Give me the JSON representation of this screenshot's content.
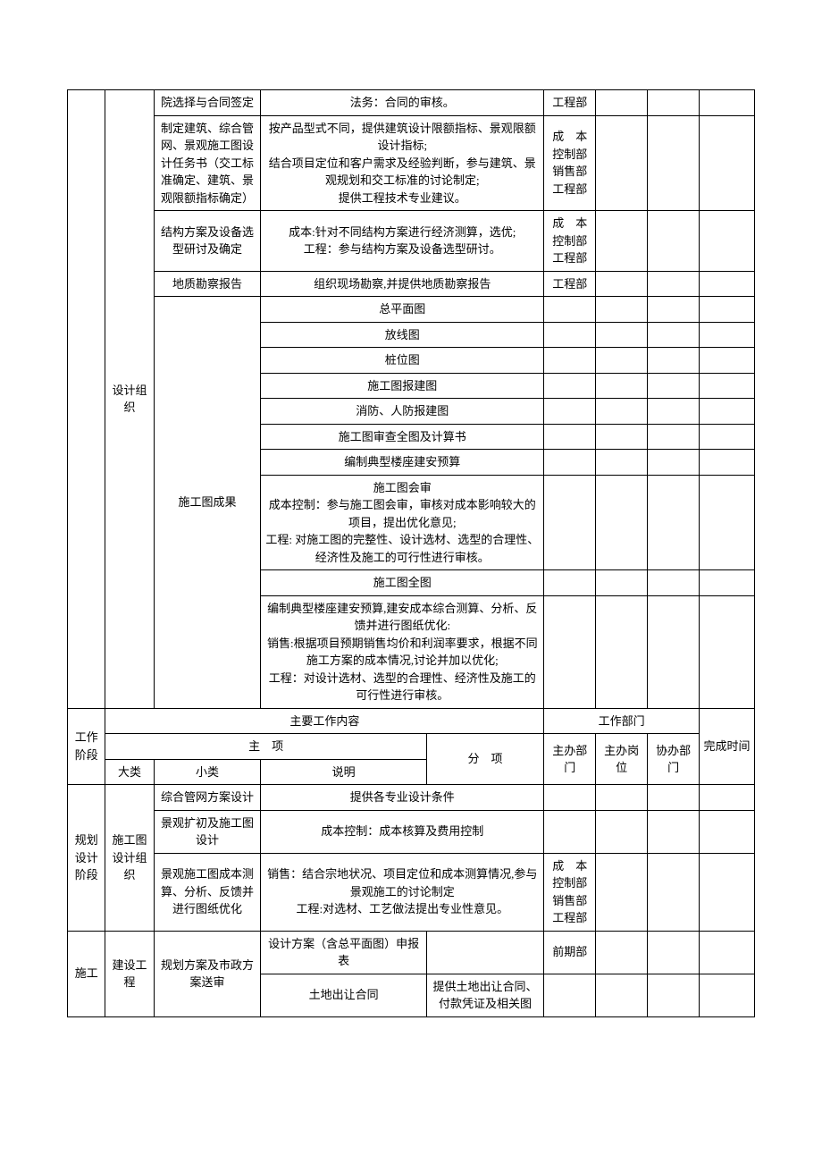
{
  "rows": [
    {
      "col1": "设计组织",
      "col2": "院选择与合同签定",
      "col34": "法务：合同的审核。",
      "col5": "工程部"
    },
    {
      "col2": "制定建筑、综合管网、景观施工图设计任务书（交工标准确定、建筑、景观限额指标确定）",
      "col34": "按产品型式不同，提供建筑设计限额指标、景观限额设计指标;\n结合项目定位和客户需求及经验判断，参与建筑、景观规划和交工标准的讨论制定;\n提供工程技术专业建议。",
      "col5": "成　本控制部销售部工程部"
    },
    {
      "col2": "结构方案及设备选型研讨及确定",
      "col34": "成本:针对不同结构方案进行经济测算，选优;\n工程：参与结构方案及设备选型研讨。",
      "col5": "成　本控制部工程部"
    },
    {
      "col2": "地质勘察报告",
      "col34": "组织现场勘察,并提供地质勘察报告",
      "col5": "工程部"
    },
    {
      "col2": "施工图成果",
      "group": [
        {
          "c34": "总平面图"
        },
        {
          "c34": "放线图"
        },
        {
          "c34": "桩位图"
        },
        {
          "c34": "施工图报建图"
        },
        {
          "c34": "消防、人防报建图"
        },
        {
          "c34": "施工图审查全图及计算书"
        },
        {
          "c34": "编制典型楼座建安预算"
        },
        {
          "c34": "施工图会审\n成本控制：参与施工图会审，审核对成本影响较大的项目，提出优化意见;\n工程: 对施工图的完整性、设计选材、选型的合理性、经济性及施工的可行性进行审核。"
        },
        {
          "c34": "施工图全图"
        },
        {
          "c34": "编制典型楼座建安预算,建安成本综合测算、分析、反馈并进行图纸优化:\n销售:根据项目预期销售均价和利润率要求，根据不同施工方案的成本情况,讨论并加以优化;\n工程：对设计选材、选型的合理性、经济性及施工的可行性进行审核。"
        }
      ]
    }
  ],
  "header": {
    "stage": "工作阶段",
    "content": "主要工作内容",
    "dept": "工作部门",
    "time": "完成时间",
    "main": "主　项",
    "sub": "分　项",
    "big": "大类",
    "small": "小类",
    "desc": "说明",
    "d1": "主办部门",
    "d2": "主办岗位",
    "d3": "协办部门"
  },
  "rows2": [
    {
      "col0": "规划设计阶段",
      "col1": "施工图设计组织",
      "items": [
        {
          "c2": "综合管网方案设计",
          "c34": "提供各专业设计条件",
          "c5": ""
        },
        {
          "c2": "景观扩初及施工图设计",
          "c34": "成本控制：成本核算及费用控制",
          "c5": ""
        },
        {
          "c2": "景观施工图成本测算、分析、反馈并进行图纸优化",
          "c34": "销售：结合宗地状况、项目定位和成本测算情况,参与景观施工的讨论制定\n工程:对选材、工艺做法提出专业性意见。",
          "c5": "成　本控制部销售部工程部"
        }
      ]
    },
    {
      "col0": "施工",
      "col1": "建设工程",
      "col2": "规划方案及市政方案送审",
      "items2": [
        {
          "c3": "设计方案（含总平面图）申报表",
          "c4": "",
          "c5": "前期部"
        },
        {
          "c3": "土地出让合同",
          "c4": "提供土地出让合同、付款凭证及相关图",
          "c5": ""
        }
      ]
    }
  ]
}
